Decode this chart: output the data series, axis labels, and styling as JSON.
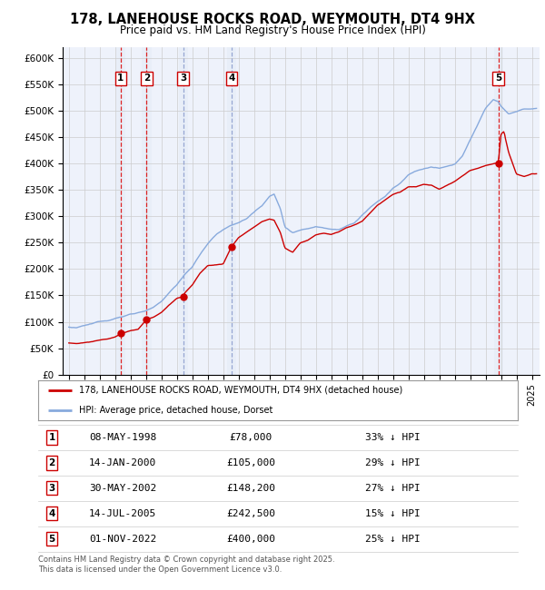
{
  "title": "178, LANEHOUSE ROCKS ROAD, WEYMOUTH, DT4 9HX",
  "subtitle": "Price paid vs. HM Land Registry's House Price Index (HPI)",
  "ylabel_ticks": [
    "£0",
    "£50K",
    "£100K",
    "£150K",
    "£200K",
    "£250K",
    "£300K",
    "£350K",
    "£400K",
    "£450K",
    "£500K",
    "£550K",
    "£600K"
  ],
  "ytick_vals": [
    0,
    50000,
    100000,
    150000,
    200000,
    250000,
    300000,
    350000,
    400000,
    450000,
    500000,
    550000,
    600000
  ],
  "xmin": 1994.6,
  "xmax": 2025.5,
  "ymin": 0,
  "ymax": 620000,
  "sale_points": [
    {
      "num": 1,
      "year": 1998.36,
      "price": 78000,
      "date": "08-MAY-1998",
      "pct": "33%",
      "dir": "↓"
    },
    {
      "num": 2,
      "year": 2000.04,
      "price": 105000,
      "date": "14-JAN-2000",
      "pct": "29%",
      "dir": "↓"
    },
    {
      "num": 3,
      "year": 2002.41,
      "price": 148200,
      "date": "30-MAY-2002",
      "pct": "27%",
      "dir": "↓"
    },
    {
      "num": 4,
      "year": 2005.54,
      "price": 242500,
      "date": "14-JUL-2005",
      "pct": "15%",
      "dir": "↓"
    },
    {
      "num": 5,
      "year": 2022.83,
      "price": 400000,
      "date": "01-NOV-2022",
      "pct": "25%",
      "dir": "↓"
    }
  ],
  "vline_colors": [
    "#dd0000",
    "#dd0000",
    "#8899cc",
    "#8899cc",
    "#dd0000"
  ],
  "span_color": "#dde8f5",
  "legend_house": "178, LANEHOUSE ROCKS ROAD, WEYMOUTH, DT4 9HX (detached house)",
  "legend_hpi": "HPI: Average price, detached house, Dorset",
  "footer": "Contains HM Land Registry data © Crown copyright and database right 2025.\nThis data is licensed under the Open Government Licence v3.0.",
  "house_color": "#cc0000",
  "hpi_color": "#88aadd",
  "grid_color": "#cccccc",
  "plot_bg": "#eef2fb"
}
